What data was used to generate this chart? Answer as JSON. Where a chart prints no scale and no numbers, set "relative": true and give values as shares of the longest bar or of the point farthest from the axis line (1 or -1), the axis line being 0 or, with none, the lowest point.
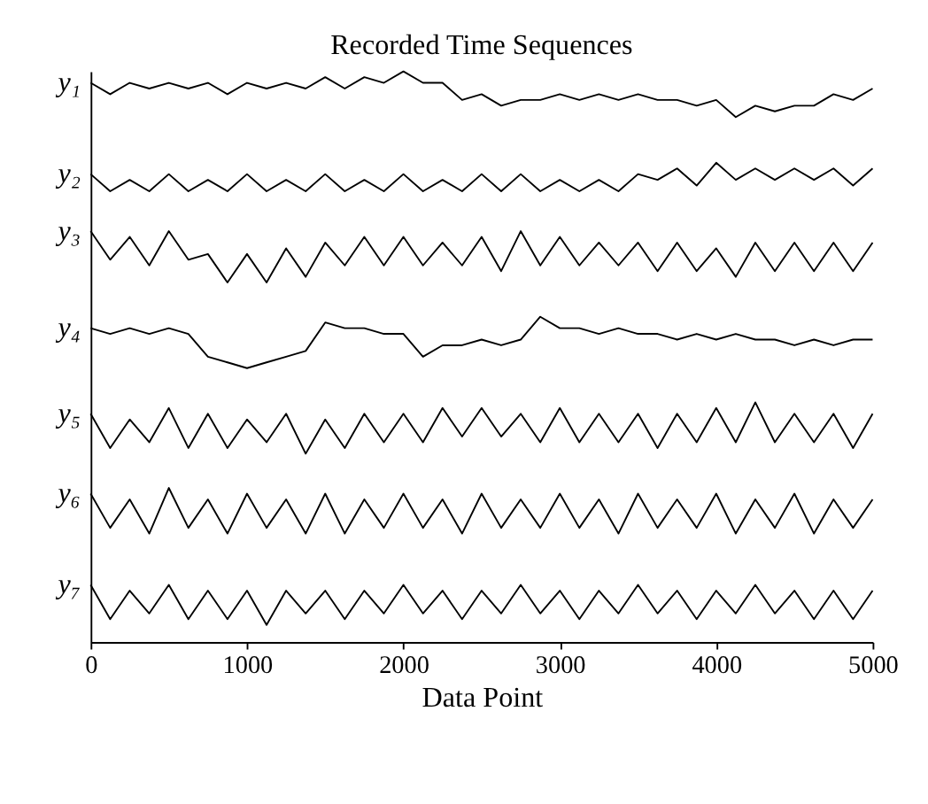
{
  "chart_data": {
    "type": "line",
    "title": "Recorded Time Sequences",
    "xlabel": "Data Point",
    "relative": true,
    "xlim": [
      0,
      5000
    ],
    "xticks": [
      0,
      1000,
      2000,
      3000,
      4000,
      5000
    ],
    "grid": false,
    "legend": false,
    "line_style": "solid",
    "marker": "none",
    "x": [
      0,
      125,
      250,
      375,
      500,
      625,
      750,
      875,
      1000,
      1125,
      1250,
      1375,
      1500,
      1625,
      1750,
      1875,
      2000,
      2125,
      2250,
      2375,
      2500,
      2625,
      2750,
      2875,
      3000,
      3125,
      3250,
      3375,
      3500,
      3625,
      3750,
      3875,
      4000,
      4125,
      4250,
      4375,
      4500,
      4625,
      4750,
      4875,
      5000
    ],
    "series": [
      {
        "name": "y₁",
        "color": "#000000",
        "values": [
          0.98,
          0.96,
          0.98,
          0.97,
          0.98,
          0.97,
          0.98,
          0.96,
          0.98,
          0.97,
          0.98,
          0.97,
          0.99,
          0.97,
          0.99,
          0.98,
          1.0,
          0.98,
          0.98,
          0.95,
          0.96,
          0.94,
          0.95,
          0.95,
          0.96,
          0.95,
          0.96,
          0.95,
          0.96,
          0.95,
          0.95,
          0.94,
          0.95,
          0.92,
          0.94,
          0.93,
          0.94,
          0.94,
          0.96,
          0.95,
          0.97
        ]
      },
      {
        "name": "y₂",
        "color": "#000000",
        "values": [
          0.82,
          0.79,
          0.81,
          0.79,
          0.82,
          0.79,
          0.81,
          0.79,
          0.82,
          0.79,
          0.81,
          0.79,
          0.82,
          0.79,
          0.81,
          0.79,
          0.82,
          0.79,
          0.81,
          0.79,
          0.82,
          0.79,
          0.82,
          0.79,
          0.81,
          0.79,
          0.81,
          0.79,
          0.82,
          0.81,
          0.83,
          0.8,
          0.84,
          0.81,
          0.83,
          0.81,
          0.83,
          0.81,
          0.83,
          0.8,
          0.83
        ]
      },
      {
        "name": "y₃",
        "color": "#000000",
        "values": [
          0.72,
          0.67,
          0.71,
          0.66,
          0.72,
          0.67,
          0.68,
          0.63,
          0.68,
          0.63,
          0.69,
          0.64,
          0.7,
          0.66,
          0.71,
          0.66,
          0.71,
          0.66,
          0.7,
          0.66,
          0.71,
          0.65,
          0.72,
          0.66,
          0.71,
          0.66,
          0.7,
          0.66,
          0.7,
          0.65,
          0.7,
          0.65,
          0.69,
          0.64,
          0.7,
          0.65,
          0.7,
          0.65,
          0.7,
          0.65,
          0.7
        ]
      },
      {
        "name": "y₄",
        "color": "#000000",
        "values": [
          0.55,
          0.54,
          0.55,
          0.54,
          0.55,
          0.54,
          0.5,
          0.49,
          0.48,
          0.49,
          0.5,
          0.51,
          0.56,
          0.55,
          0.55,
          0.54,
          0.54,
          0.5,
          0.52,
          0.52,
          0.53,
          0.52,
          0.53,
          0.57,
          0.55,
          0.55,
          0.54,
          0.55,
          0.54,
          0.54,
          0.53,
          0.54,
          0.53,
          0.54,
          0.53,
          0.53,
          0.52,
          0.53,
          0.52,
          0.53,
          0.53
        ]
      },
      {
        "name": "y₅",
        "color": "#000000",
        "values": [
          0.4,
          0.34,
          0.39,
          0.35,
          0.41,
          0.34,
          0.4,
          0.34,
          0.39,
          0.35,
          0.4,
          0.33,
          0.39,
          0.34,
          0.4,
          0.35,
          0.4,
          0.35,
          0.41,
          0.36,
          0.41,
          0.36,
          0.4,
          0.35,
          0.41,
          0.35,
          0.4,
          0.35,
          0.4,
          0.34,
          0.4,
          0.35,
          0.41,
          0.35,
          0.42,
          0.35,
          0.4,
          0.35,
          0.4,
          0.34,
          0.4
        ]
      },
      {
        "name": "y₆",
        "color": "#000000",
        "values": [
          0.26,
          0.2,
          0.25,
          0.19,
          0.27,
          0.2,
          0.25,
          0.19,
          0.26,
          0.2,
          0.25,
          0.19,
          0.26,
          0.19,
          0.25,
          0.2,
          0.26,
          0.2,
          0.25,
          0.19,
          0.26,
          0.2,
          0.25,
          0.2,
          0.26,
          0.2,
          0.25,
          0.19,
          0.26,
          0.2,
          0.25,
          0.2,
          0.26,
          0.19,
          0.25,
          0.2,
          0.26,
          0.19,
          0.25,
          0.2,
          0.25
        ]
      },
      {
        "name": "y₇",
        "color": "#000000",
        "values": [
          0.1,
          0.04,
          0.09,
          0.05,
          0.1,
          0.04,
          0.09,
          0.04,
          0.09,
          0.03,
          0.09,
          0.05,
          0.09,
          0.04,
          0.09,
          0.05,
          0.1,
          0.05,
          0.09,
          0.04,
          0.09,
          0.05,
          0.1,
          0.05,
          0.09,
          0.04,
          0.09,
          0.05,
          0.1,
          0.05,
          0.09,
          0.04,
          0.09,
          0.05,
          0.1,
          0.05,
          0.09,
          0.04,
          0.09,
          0.04,
          0.09
        ]
      }
    ]
  }
}
